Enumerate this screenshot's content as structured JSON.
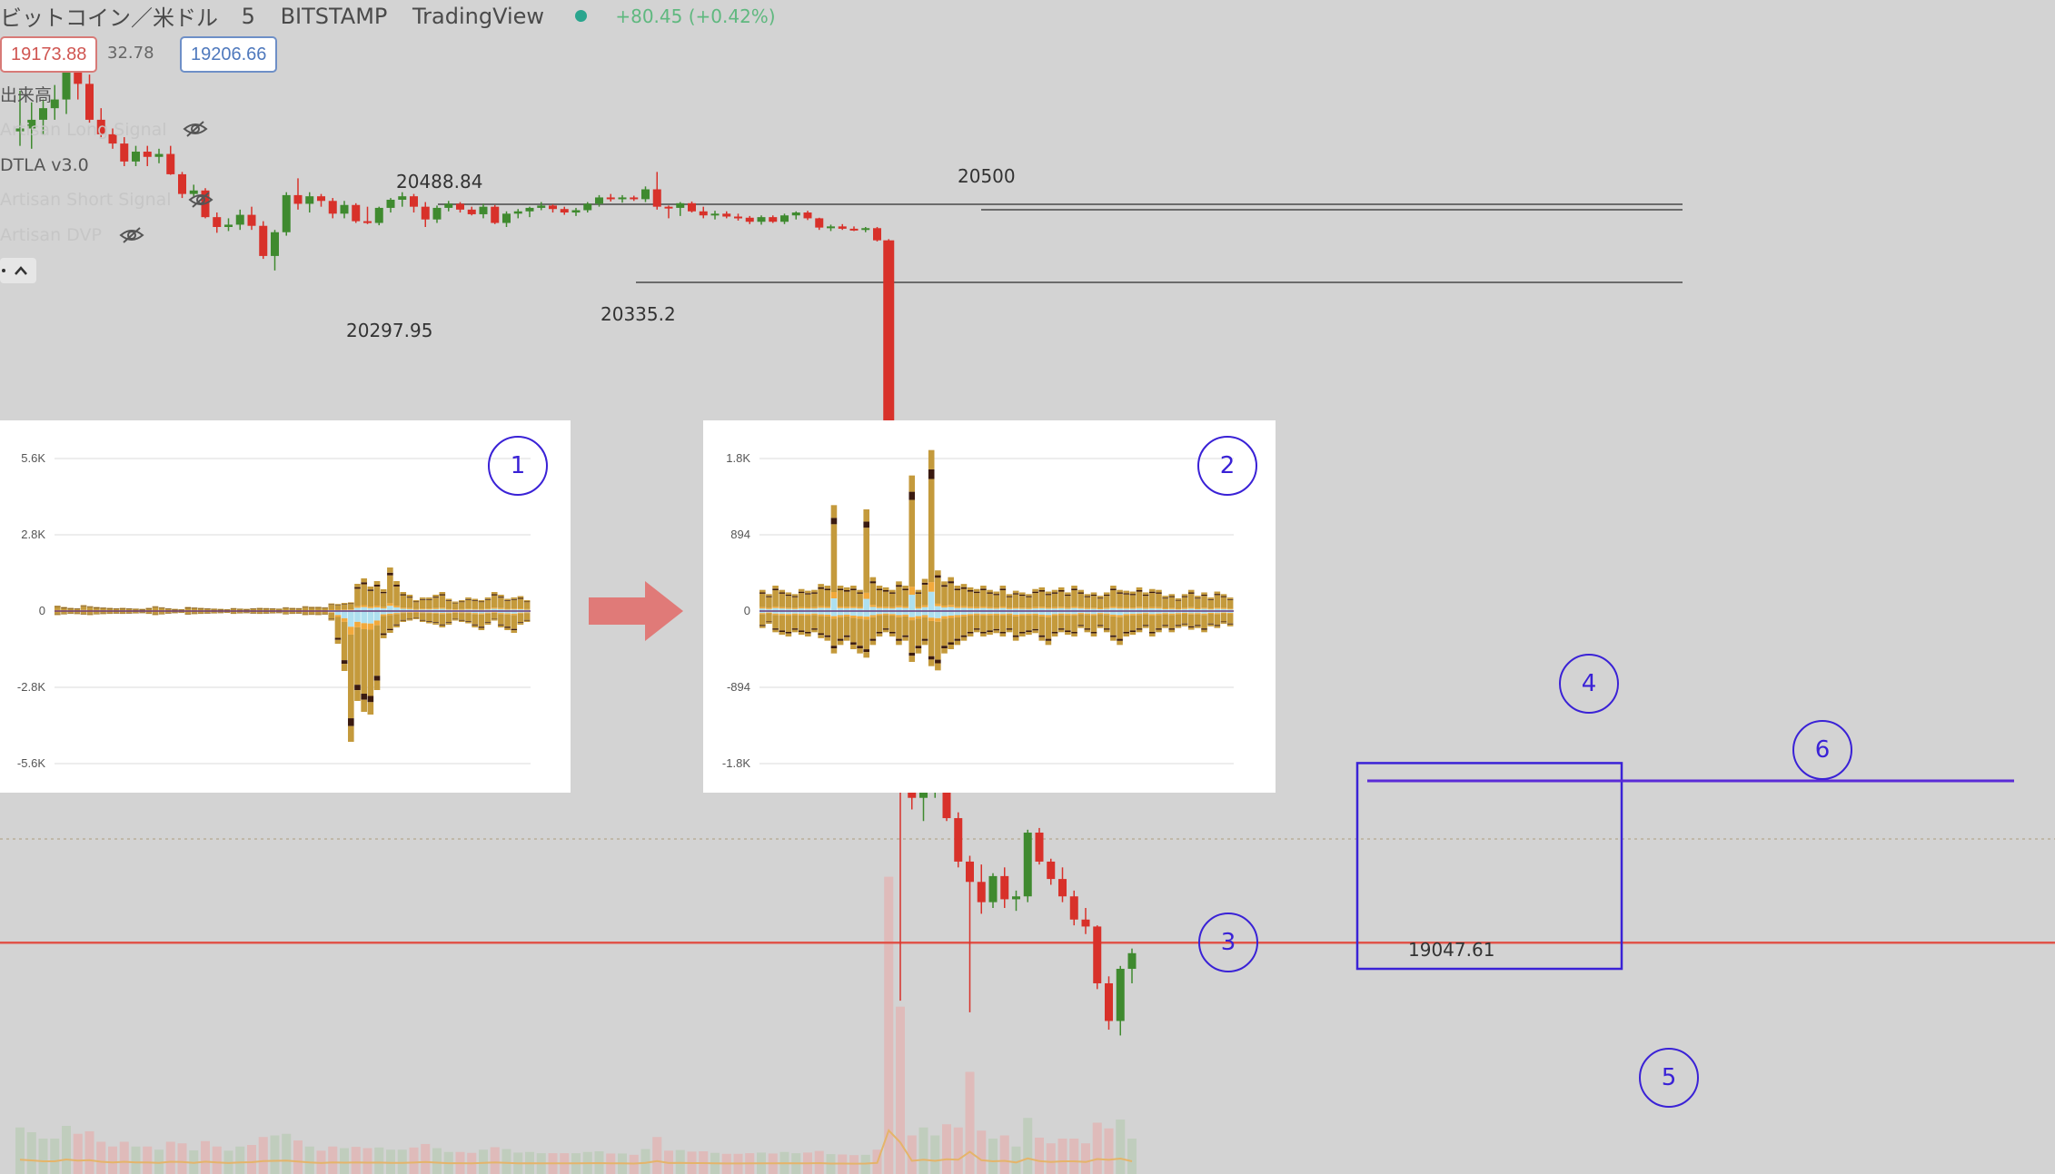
{
  "header": {
    "symbol": "ビットコイン／米ドル",
    "interval": "5",
    "exchange": "BITSTAMP",
    "source": "TradingView",
    "change": "+80.45 (+0.42%)",
    "bid": "19173.88",
    "spread": "32.78",
    "ask": "19206.66"
  },
  "indicators": [
    {
      "label": "出来高",
      "hidden": false,
      "faded": false
    },
    {
      "label": "Artisan Long Signal",
      "hidden": true,
      "faded": true
    },
    {
      "label": "DTLA v3.0",
      "hidden": false,
      "faded": false
    },
    {
      "label": "Artisan Short Signal",
      "hidden": true,
      "faded": true
    },
    {
      "label": "Artisan DVP",
      "hidden": true,
      "faded": true
    }
  ],
  "price_labels": {
    "high_left": "20488.84",
    "high_right": "20500",
    "low_left": "20297.95",
    "low_mid": "20335.2",
    "low_bottom": "19047.61"
  },
  "markers": [
    "1",
    "2",
    "3",
    "4",
    "5",
    "6"
  ],
  "colors": {
    "up": "#3f8a2f",
    "down": "#d8312a",
    "annotation": "#3a22d6",
    "support_line": "#e0544a",
    "arrow": "#e07a78",
    "bar_main": "#c49a3c",
    "bar_light": "#aee0ef",
    "bar_orange": "#f2a93b",
    "bar_dark": "#3a1a10"
  },
  "chart_data": [
    {
      "type": "candlestick",
      "title": "",
      "ohlc": [
        [
          20570,
          20640,
          20545,
          20575
        ],
        [
          20575,
          20620,
          20540,
          20590
        ],
        [
          20590,
          20625,
          20565,
          20610
        ],
        [
          20610,
          20650,
          20590,
          20625
        ],
        [
          20625,
          20700,
          20600,
          20672
        ],
        [
          20672,
          20700,
          20625,
          20652
        ],
        [
          20652,
          20668,
          20585,
          20590
        ],
        [
          20590,
          20610,
          20560,
          20565
        ],
        [
          20565,
          20575,
          20540,
          20549
        ],
        [
          20549,
          20560,
          20510,
          20518
        ],
        [
          20518,
          20545,
          20510,
          20535
        ],
        [
          20535,
          20545,
          20510,
          20526
        ],
        [
          20526,
          20540,
          20515,
          20531
        ],
        [
          20531,
          20545,
          20495,
          20496
        ],
        [
          20496,
          20500,
          20455,
          20462
        ],
        [
          20462,
          20478,
          20455,
          20468
        ],
        [
          20468,
          20472,
          20420,
          20422
        ],
        [
          20422,
          20430,
          20395,
          20405
        ],
        [
          20405,
          20420,
          20398,
          20409
        ],
        [
          20409,
          20435,
          20400,
          20426
        ],
        [
          20426,
          20440,
          20400,
          20407
        ],
        [
          20407,
          20415,
          20350,
          20355
        ],
        [
          20355,
          20400,
          20330,
          20396
        ],
        [
          20396,
          20465,
          20390,
          20460
        ],
        [
          20460,
          20489,
          20435,
          20445
        ],
        [
          20445,
          20465,
          20430,
          20458
        ],
        [
          20458,
          20462,
          20440,
          20450
        ],
        [
          20450,
          20455,
          20420,
          20428
        ],
        [
          20428,
          20450,
          20420,
          20443
        ],
        [
          20443,
          20446,
          20412,
          20415
        ],
        [
          20415,
          20440,
          20410,
          20412
        ],
        [
          20412,
          20440,
          20408,
          20438
        ],
        [
          20438,
          20455,
          20430,
          20452
        ],
        [
          20452,
          20465,
          20440,
          20458
        ],
        [
          20458,
          20462,
          20430,
          20440
        ],
        [
          20440,
          20448,
          20405,
          20418
        ],
        [
          20418,
          20442,
          20412,
          20438
        ],
        [
          20438,
          20450,
          20432,
          20445
        ],
        [
          20445,
          20448,
          20430,
          20435
        ],
        [
          20435,
          20440,
          20425,
          20427
        ],
        [
          20427,
          20445,
          20420,
          20440
        ],
        [
          20440,
          20443,
          20410,
          20412
        ],
        [
          20412,
          20432,
          20405,
          20428
        ],
        [
          20428,
          20436,
          20420,
          20432
        ],
        [
          20432,
          20440,
          20422,
          20438
        ],
        [
          20438,
          20448,
          20434,
          20442
        ],
        [
          20442,
          20444,
          20430,
          20436
        ],
        [
          20436,
          20440,
          20426,
          20430
        ],
        [
          20430,
          20438,
          20424,
          20434
        ],
        [
          20434,
          20448,
          20430,
          20445
        ],
        [
          20445,
          20460,
          20440,
          20456
        ],
        [
          20456,
          20462,
          20449,
          20453
        ],
        [
          20453,
          20460,
          20447,
          20456
        ],
        [
          20456,
          20459,
          20450,
          20453
        ],
        [
          20453,
          20475,
          20448,
          20470
        ],
        [
          20470,
          20500,
          20435,
          20440
        ],
        [
          20440,
          20442,
          20420,
          20438
        ],
        [
          20438,
          20448,
          20424,
          20446
        ],
        [
          20446,
          20449,
          20430,
          20432
        ],
        [
          20432,
          20440,
          20420,
          20425
        ],
        [
          20425,
          20433,
          20418,
          20428
        ],
        [
          20428,
          20432,
          20420,
          20423
        ],
        [
          20423,
          20428,
          20416,
          20421
        ],
        [
          20421,
          20424,
          20410,
          20414
        ],
        [
          20414,
          20425,
          20409,
          20422
        ],
        [
          20422,
          20425,
          20412,
          20414
        ],
        [
          20414,
          20428,
          20410,
          20425
        ],
        [
          20425,
          20432,
          20418,
          20430
        ],
        [
          20430,
          20433,
          20417,
          20420
        ],
        [
          20420,
          20421,
          20400,
          20404
        ],
        [
          20404,
          20409,
          20398,
          20406
        ],
        [
          20406,
          20410,
          20400,
          20402
        ],
        [
          20402,
          20406,
          20398,
          20400
        ],
        [
          20400,
          20405,
          20396,
          20403
        ],
        [
          20403,
          20405,
          20380,
          20382
        ],
        [
          20382,
          20384,
          19500,
          19510
        ],
        [
          19540,
          19545,
          19070,
          19455
        ],
        [
          19455,
          19470,
          19400,
          19420
        ],
        [
          19420,
          19475,
          19380,
          19462
        ],
        [
          19462,
          19490,
          19420,
          19478
        ],
        [
          19478,
          19485,
          19380,
          19385
        ],
        [
          19385,
          19395,
          19300,
          19310
        ],
        [
          19310,
          19320,
          19050,
          19275
        ],
        [
          19275,
          19305,
          19220,
          19240
        ],
        [
          19240,
          19290,
          19230,
          19285
        ],
        [
          19285,
          19300,
          19230,
          19245
        ],
        [
          19245,
          19260,
          19225,
          19250
        ],
        [
          19250,
          19365,
          19240,
          19360
        ],
        [
          19360,
          19368,
          19305,
          19310
        ],
        [
          19310,
          19315,
          19270,
          19280
        ],
        [
          19280,
          19300,
          19240,
          19250
        ],
        [
          19250,
          19260,
          19200,
          19210
        ],
        [
          19210,
          19230,
          19185,
          19198
        ],
        [
          19198,
          19200,
          19090,
          19100
        ],
        [
          19100,
          19112,
          19020,
          19035
        ],
        [
          19035,
          19130,
          19010,
          19125
        ],
        [
          19125,
          19160,
          19100,
          19152
        ]
      ],
      "support": 19170,
      "rect_high": 19480,
      "rect_low": 19125
    },
    {
      "type": "bar",
      "title": "",
      "yticks": [
        "5.6K",
        "2.8K",
        "0",
        "-2.8K",
        "-5.6K"
      ],
      "ylim": [
        -5600,
        5600
      ],
      "pos": [
        200,
        150,
        120,
        100,
        220,
        180,
        150,
        130,
        120,
        100,
        120,
        100,
        90,
        80,
        120,
        180,
        140,
        100,
        80,
        70,
        150,
        130,
        120,
        100,
        90,
        80,
        70,
        110,
        90,
        80,
        100,
        120,
        110,
        100,
        90,
        140,
        120,
        110,
        180,
        160,
        160,
        140,
        280,
        260,
        300,
        320,
        1000,
        1200,
        900,
        1100,
        800,
        1600,
        1100,
        700,
        600,
        400,
        500,
        500,
        600,
        700,
        450,
        350,
        400,
        500,
        450,
        400,
        500,
        700,
        600,
        450,
        500,
        550,
        400
      ],
      "neg": [
        -150,
        -120,
        -100,
        -110,
        -130,
        -150,
        -120,
        -110,
        -100,
        -90,
        -100,
        -90,
        -80,
        -70,
        -100,
        -150,
        -120,
        -90,
        -70,
        -60,
        -130,
        -110,
        -100,
        -90,
        -80,
        -70,
        -60,
        -100,
        -80,
        -70,
        -90,
        -100,
        -90,
        -80,
        -70,
        -120,
        -100,
        -90,
        -150,
        -140,
        -150,
        -130,
        -350,
        -1200,
        -2200,
        -4800,
        -3300,
        -3700,
        -3800,
        -2900,
        -1000,
        -800,
        -600,
        -400,
        -350,
        -300,
        -400,
        -450,
        -500,
        -600,
        -500,
        -350,
        -400,
        -450,
        -600,
        -700,
        -500,
        -350,
        -600,
        -700,
        -800,
        -500,
        -400
      ]
    },
    {
      "type": "bar",
      "title": "",
      "yticks": [
        "1.8K",
        "894",
        "0",
        "-894",
        "-1.8K"
      ],
      "ylim": [
        -1800,
        1800
      ],
      "pos": [
        250,
        200,
        300,
        250,
        220,
        200,
        260,
        240,
        250,
        320,
        300,
        1250,
        300,
        280,
        300,
        250,
        1200,
        400,
        300,
        280,
        250,
        350,
        300,
        1600,
        250,
        380,
        1900,
        480,
        350,
        400,
        300,
        320,
        280,
        260,
        300,
        250,
        230,
        300,
        200,
        240,
        220,
        200,
        260,
        280,
        230,
        250,
        280,
        220,
        300,
        250,
        200,
        220,
        180,
        220,
        300,
        250,
        240,
        230,
        280,
        220,
        260,
        250,
        180,
        200,
        150,
        200,
        250,
        180,
        220,
        160,
        230,
        200,
        160
      ],
      "neg": [
        -200,
        -150,
        -250,
        -280,
        -300,
        -250,
        -280,
        -300,
        -250,
        -320,
        -350,
        -500,
        -400,
        -350,
        -450,
        -500,
        -550,
        -400,
        -300,
        -250,
        -300,
        -400,
        -350,
        -600,
        -500,
        -400,
        -650,
        -700,
        -500,
        -450,
        -400,
        -350,
        -300,
        -250,
        -300,
        -280,
        -260,
        -300,
        -250,
        -350,
        -300,
        -280,
        -260,
        -350,
        -400,
        -300,
        -250,
        -280,
        -300,
        -200,
        -250,
        -300,
        -200,
        -250,
        -350,
        -400,
        -300,
        -280,
        -250,
        -200,
        -300,
        -250,
        -200,
        -250,
        -200,
        -180,
        -220,
        -200,
        -250,
        -180,
        -200,
        -150,
        -180
      ]
    }
  ]
}
